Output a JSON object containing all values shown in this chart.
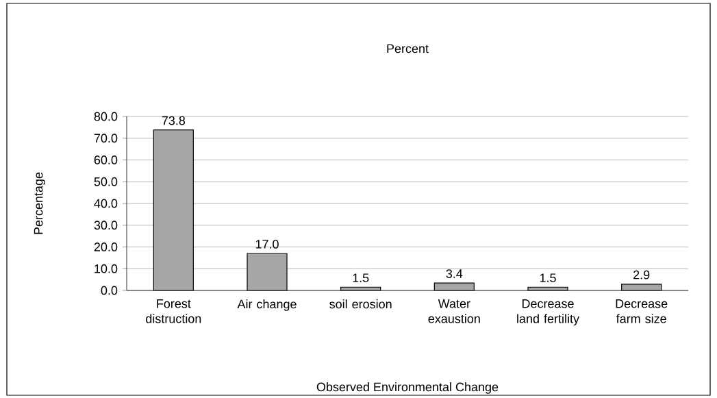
{
  "chart_data": {
    "type": "bar",
    "title": "Percent",
    "xlabel": "Observed Environmental Change",
    "ylabel": "Percentage",
    "categories": [
      "Forest distruction",
      "Air change",
      "soil erosion",
      "Water exaustion",
      "Decrease land fertility",
      "Decrease farm size"
    ],
    "values": [
      73.8,
      17.0,
      1.5,
      3.4,
      1.5,
      2.9
    ],
    "value_labels": [
      "73.8",
      "17.0",
      "1.5",
      "3.4",
      "1.5",
      "2.9"
    ],
    "color": "#a6a6a6",
    "ylim": [
      0,
      80
    ],
    "yticks": [
      {
        "value": 0,
        "label": "0.0"
      },
      {
        "value": 10,
        "label": "10.0"
      },
      {
        "value": 20,
        "label": "20.0"
      },
      {
        "value": 30,
        "label": "30.0"
      },
      {
        "value": 40,
        "label": "40.0"
      },
      {
        "value": 50,
        "label": "50.0"
      },
      {
        "value": 60,
        "label": "60.0"
      },
      {
        "value": 70,
        "label": "70.0"
      },
      {
        "value": 80,
        "label": "80.0"
      }
    ],
    "grid": "y"
  }
}
